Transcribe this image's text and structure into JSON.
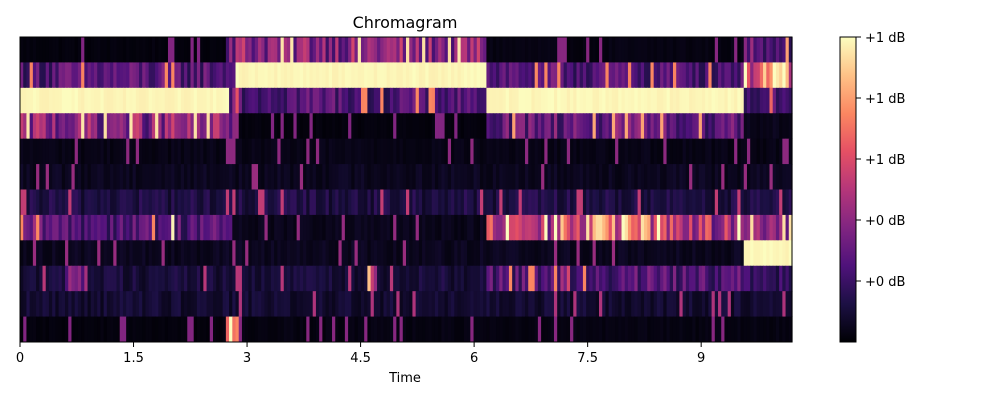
{
  "chart_data": {
    "type": "heatmap",
    "title": "Chromagram",
    "xlabel": "Time",
    "ylabel": "",
    "x_range": [
      0,
      10.2
    ],
    "x_ticks": [
      0,
      1.5,
      3,
      4.5,
      6,
      7.5,
      9
    ],
    "x_tick_labels": [
      "0",
      "1.5",
      "3",
      "4.5",
      "6",
      "7.5",
      "9"
    ],
    "n_rows": 12,
    "colormap": "magma",
    "colormap_stops": [
      "#000004",
      "#1c1044",
      "#4f127b",
      "#812581",
      "#b5367a",
      "#e55064",
      "#fb8761",
      "#fec287",
      "#fcfdbf"
    ],
    "colorbar": {
      "orientation": "vertical",
      "placement": "right",
      "tick_labels": [
        "+1 dB",
        "+1 dB",
        "+1 dB",
        "+0 dB",
        "+0 dB"
      ],
      "tick_values": [
        1.0,
        0.8,
        0.6,
        0.4,
        0.2
      ]
    },
    "segments": [
      [
        [
          0,
          2.7,
          0.02
        ],
        [
          2.7,
          6.15,
          0.45
        ],
        [
          6.15,
          9.55,
          0.03
        ],
        [
          9.55,
          10.2,
          0.35
        ]
      ],
      [
        [
          0,
          2.85,
          0.3
        ],
        [
          2.85,
          6.15,
          1.0
        ],
        [
          6.15,
          9.55,
          0.3
        ],
        [
          9.55,
          10.2,
          0.8
        ]
      ],
      [
        [
          0,
          2.75,
          1.0
        ],
        [
          2.75,
          6.15,
          0.3
        ],
        [
          6.15,
          9.55,
          1.0
        ],
        [
          9.55,
          10.2,
          0.25
        ]
      ],
      [
        [
          0,
          2.9,
          0.45
        ],
        [
          2.9,
          6.15,
          0.02
        ],
        [
          6.15,
          9.55,
          0.35
        ],
        [
          9.55,
          10.2,
          0.05
        ]
      ],
      [
        [
          0,
          10.2,
          0.04
        ]
      ],
      [
        [
          0,
          10.2,
          0.06
        ]
      ],
      [
        [
          0,
          10.2,
          0.14
        ]
      ],
      [
        [
          0,
          2.8,
          0.3
        ],
        [
          2.8,
          6.15,
          0.05
        ],
        [
          6.15,
          9.55,
          0.55
        ],
        [
          9.55,
          10.2,
          0.45
        ]
      ],
      [
        [
          0,
          9.55,
          0.06
        ],
        [
          9.55,
          10.2,
          0.95
        ]
      ],
      [
        [
          0,
          6.15,
          0.12
        ],
        [
          6.15,
          9.55,
          0.3
        ],
        [
          9.55,
          10.2,
          0.2
        ]
      ],
      [
        [
          0,
          10.2,
          0.1
        ]
      ],
      [
        [
          0,
          2.7,
          0.02
        ],
        [
          2.7,
          2.9,
          0.85
        ],
        [
          2.9,
          10.2,
          0.03
        ]
      ]
    ],
    "highlights": [
      [
        1,
        9.65,
        10.2,
        0.7
      ],
      [
        2,
        2.8,
        2.9,
        0.9
      ],
      [
        2,
        6.15,
        9.55,
        1.0
      ],
      [
        7,
        7.1,
        8.6,
        0.75
      ],
      [
        7,
        0.15,
        0.2,
        0.6
      ],
      [
        7,
        2.0,
        2.05,
        0.95
      ],
      [
        8,
        9.8,
        10.2,
        1.0
      ],
      [
        9,
        4.6,
        4.7,
        0.8
      ],
      [
        9,
        7.15,
        7.25,
        0.75
      ],
      [
        9,
        0.6,
        0.9,
        0.45
      ]
    ]
  }
}
